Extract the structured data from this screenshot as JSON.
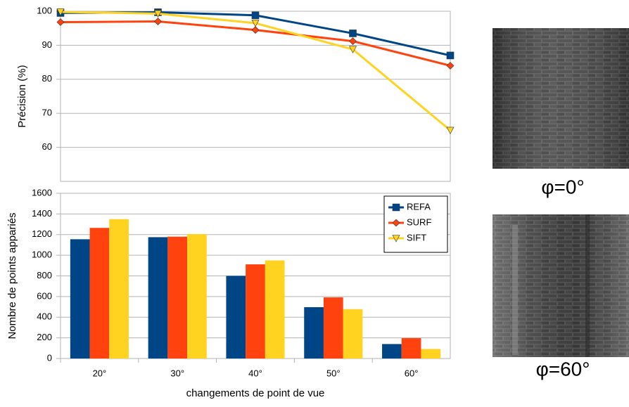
{
  "chart_data": [
    {
      "type": "line",
      "y_label": "Précision (%)",
      "categories": [
        null,
        null,
        null,
        null,
        null
      ],
      "ylim": [
        50,
        100
      ],
      "yticks": [
        60,
        70,
        80,
        90,
        100
      ],
      "grid": true,
      "series": [
        {
          "color": "#004586",
          "marker": "square",
          "values": [
            99.5,
            99.7,
            98.8,
            93.5,
            87
          ]
        },
        {
          "color": "#ff420e",
          "marker": "diamond",
          "values": [
            96.8,
            97,
            94.5,
            91.2,
            84
          ]
        },
        {
          "color": "#ffd320",
          "marker": "triangle-down",
          "values": [
            99.8,
            99.3,
            96.5,
            88.8,
            65
          ]
        }
      ]
    },
    {
      "type": "bar",
      "y_label": "Nombre de points appariés",
      "x_label": "changements de point de vue",
      "categories": [
        "20°",
        "30°",
        "40°",
        "50°",
        "60°"
      ],
      "ylim": [
        0,
        1600
      ],
      "yticks": [
        0,
        200,
        400,
        600,
        800,
        1000,
        1200,
        1400,
        1600
      ],
      "grid": true,
      "legend": "top-right",
      "series": [
        {
          "name": "REFA",
          "color": "#004586",
          "marker": "square",
          "values": [
            1155,
            1175,
            800,
            497,
            140
          ]
        },
        {
          "name": "SURF",
          "color": "#ff420e",
          "marker": "diamond",
          "values": [
            1265,
            1180,
            912,
            592,
            197
          ]
        },
        {
          "name": "SIFT",
          "color": "#ffd320",
          "marker": "triangle-down",
          "values": [
            1350,
            1205,
            950,
            478,
            92
          ]
        }
      ]
    }
  ],
  "images": [
    {
      "caption": "φ=0°"
    },
    {
      "caption": "φ=60°"
    }
  ]
}
